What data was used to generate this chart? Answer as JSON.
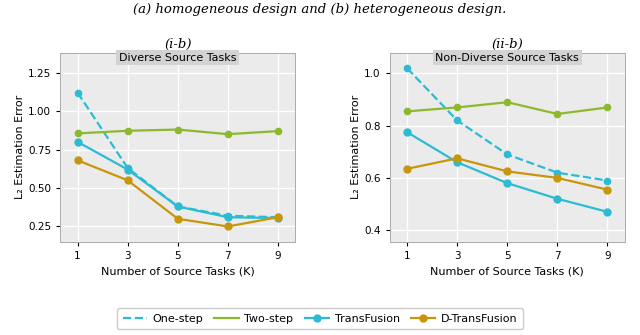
{
  "x": [
    1,
    3,
    5,
    7,
    9
  ],
  "plot1": {
    "title": "(i-b)",
    "panel_label": "Diverse Source Tasks",
    "one_step": [
      1.12,
      0.63,
      0.38,
      0.32,
      0.31
    ],
    "two_step": [
      0.855,
      0.872,
      0.88,
      0.85,
      0.87
    ],
    "transfusion": [
      0.8,
      0.62,
      0.38,
      0.31,
      0.305
    ],
    "dtransfusion": [
      0.68,
      0.55,
      0.3,
      0.25,
      0.31
    ],
    "ylim": [
      0.15,
      1.38
    ],
    "yticks": [
      0.25,
      0.5,
      0.75,
      1.0,
      1.25
    ]
  },
  "plot2": {
    "title": "(ii-b)",
    "panel_label": "Non-Diverse Source Tasks",
    "one_step": [
      1.02,
      0.82,
      0.69,
      0.62,
      0.59
    ],
    "two_step": [
      0.855,
      0.87,
      0.89,
      0.845,
      0.87
    ],
    "transfusion": [
      0.775,
      0.66,
      0.58,
      0.52,
      0.47
    ],
    "dtransfusion": [
      0.635,
      0.675,
      0.625,
      0.6,
      0.555
    ],
    "ylim": [
      0.355,
      1.08
    ],
    "yticks": [
      0.4,
      0.6,
      0.8,
      1.0
    ]
  },
  "color_one_step": "#2bbcd4",
  "color_two_step": "#8db92e",
  "color_transfusion": "#2bbcd4",
  "color_dtransfusion": "#c8960c",
  "xlabel": "Number of Source Tasks (K)",
  "ylabel": "L₂ Estimation Error",
  "bg_color": "#ebebeb",
  "panel_header_color": "#d3d3d3",
  "grid_color": "white",
  "top_title": "(a) homogeneous design and (b) heterogeneous design."
}
